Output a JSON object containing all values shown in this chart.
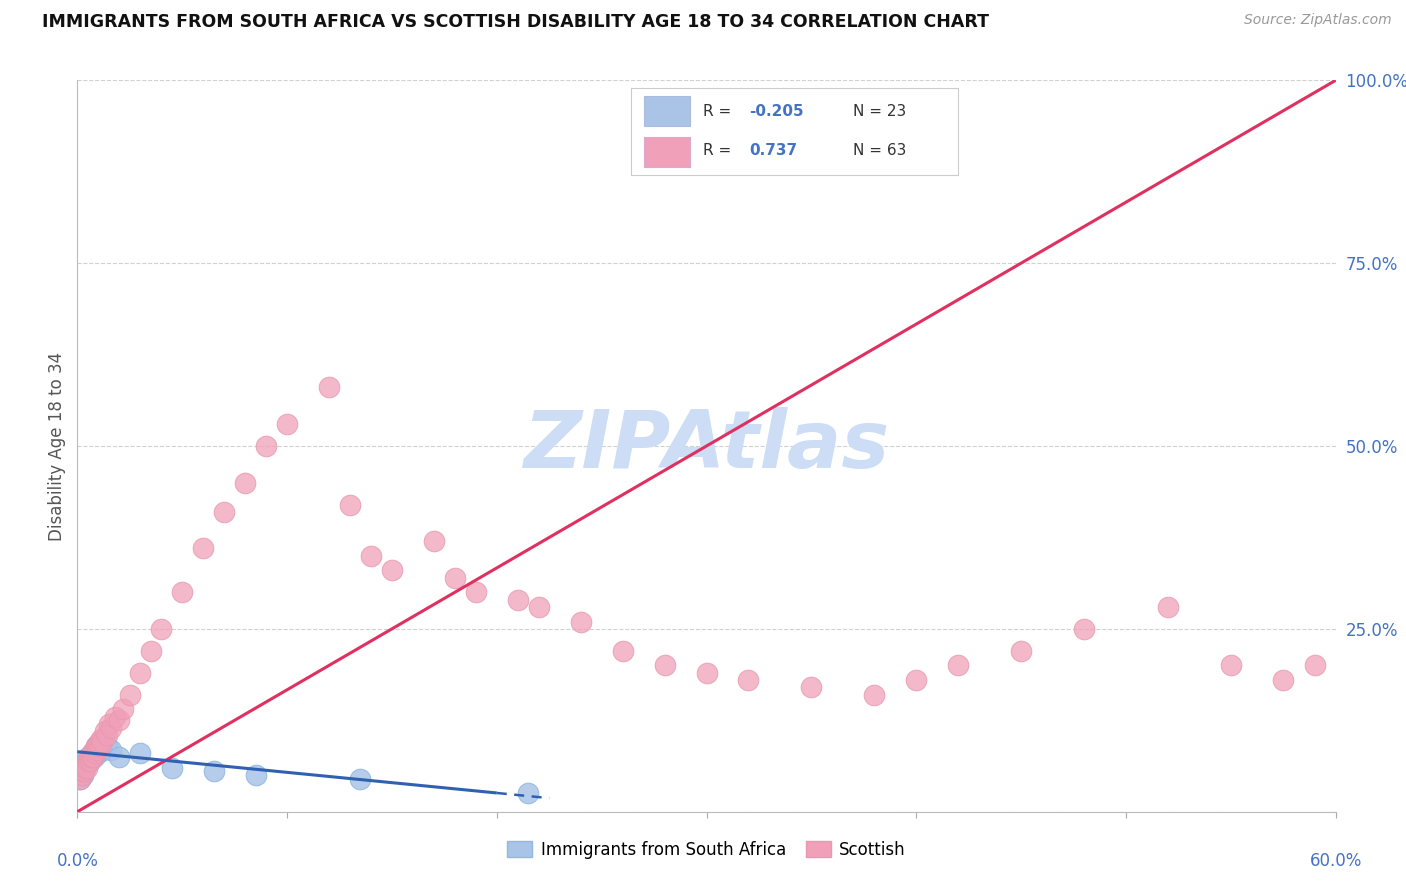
{
  "title": "IMMIGRANTS FROM SOUTH AFRICA VS SCOTTISH DISABILITY AGE 18 TO 34 CORRELATION CHART",
  "source": "Source: ZipAtlas.com",
  "ylabel": "Disability Age 18 to 34",
  "xlim": [
    0.0,
    60.0
  ],
  "ylim": [
    0.0,
    100.0
  ],
  "color_blue": "#aac4e8",
  "color_pink": "#f0a0b8",
  "color_blue_line": "#3060b0",
  "color_pink_line": "#e03060",
  "color_text_blue": "#4472c4",
  "watermark": "ZIPAtlas",
  "watermark_color": "#ccddf5",
  "bg_color": "#ffffff",
  "grid_color": "#cccccc",
  "blue_points_x": [
    0.15,
    0.2,
    0.25,
    0.3,
    0.35,
    0.4,
    0.45,
    0.5,
    0.6,
    0.7,
    0.8,
    0.9,
    1.0,
    1.2,
    1.4,
    1.6,
    2.0,
    3.0,
    4.5,
    6.5,
    8.5,
    13.5,
    21.5
  ],
  "blue_points_y": [
    4.5,
    5.5,
    5.0,
    6.5,
    6.0,
    7.0,
    6.5,
    7.5,
    7.0,
    8.0,
    7.5,
    9.0,
    8.0,
    8.5,
    9.0,
    8.5,
    7.5,
    8.0,
    6.0,
    5.5,
    5.0,
    4.5,
    2.5
  ],
  "pink_points_x": [
    0.15,
    0.2,
    0.25,
    0.3,
    0.35,
    0.4,
    0.45,
    0.5,
    0.55,
    0.6,
    0.65,
    0.7,
    0.75,
    0.8,
    0.85,
    0.9,
    0.95,
    1.0,
    1.05,
    1.1,
    1.15,
    1.2,
    1.3,
    1.4,
    1.5,
    1.6,
    1.8,
    2.0,
    2.2,
    2.5,
    3.0,
    3.5,
    4.0,
    5.0,
    6.0,
    7.0,
    8.0,
    9.0,
    10.0,
    12.0,
    13.0,
    14.0,
    15.0,
    17.0,
    18.0,
    19.0,
    21.0,
    22.0,
    24.0,
    26.0,
    28.0,
    30.0,
    32.0,
    35.0,
    38.0,
    40.0,
    42.0,
    45.0,
    48.0,
    52.0,
    55.0,
    57.5,
    59.0
  ],
  "pink_points_y": [
    4.5,
    5.0,
    5.5,
    5.5,
    6.0,
    6.5,
    6.0,
    7.0,
    7.5,
    7.0,
    7.5,
    8.0,
    7.5,
    8.5,
    8.0,
    9.0,
    8.5,
    9.0,
    9.5,
    9.0,
    10.0,
    9.5,
    11.0,
    10.5,
    12.0,
    11.5,
    13.0,
    12.5,
    14.0,
    16.0,
    19.0,
    22.0,
    25.0,
    30.0,
    36.0,
    41.0,
    45.0,
    50.0,
    53.0,
    58.0,
    42.0,
    35.0,
    33.0,
    37.0,
    32.0,
    30.0,
    29.0,
    28.0,
    26.0,
    22.0,
    20.0,
    19.0,
    18.0,
    17.0,
    16.0,
    18.0,
    20.0,
    22.0,
    25.0,
    28.0,
    20.0,
    18.0,
    20.0
  ],
  "blue_line_x0": 0.0,
  "blue_line_y0": 8.2,
  "blue_line_x1": 22.0,
  "blue_line_y1": 2.0,
  "blue_line_solid_end": 20.0,
  "blue_line_dash_end": 22.5,
  "pink_line_x0": 0.0,
  "pink_line_y0": 0.0,
  "pink_line_x1": 60.0,
  "pink_line_y1": 100.0
}
